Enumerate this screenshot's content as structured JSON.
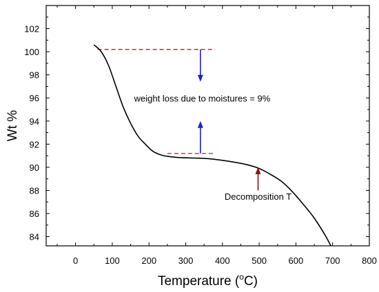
{
  "chart_data": {
    "type": "line",
    "title": "",
    "xlabel": "Temperature (",
    "xlabel_sup": "o",
    "xlabel_end": "C)",
    "ylabel": "Wt %",
    "xlim": [
      -80,
      800
    ],
    "ylim": [
      83.2,
      104
    ],
    "xticks": [
      0,
      100,
      200,
      300,
      400,
      500,
      600,
      700,
      800
    ],
    "yticks": [
      84,
      86,
      88,
      90,
      92,
      94,
      96,
      98,
      100,
      102
    ],
    "grid": false,
    "series": [
      {
        "color": "#000000",
        "x": [
          50,
          70,
          90,
          110,
          130,
          150,
          170,
          190,
          210,
          230,
          250,
          280,
          320,
          360,
          400,
          440,
          470,
          500,
          530,
          560,
          590,
          620,
          650,
          680,
          695
        ],
        "y": [
          100.6,
          100.0,
          98.8,
          97.0,
          95.2,
          93.8,
          92.7,
          92.0,
          91.4,
          91.1,
          90.95,
          90.85,
          90.8,
          90.75,
          90.6,
          90.4,
          90.2,
          89.9,
          89.4,
          88.8,
          87.9,
          86.8,
          85.6,
          84.1,
          83.2
        ]
      }
    ],
    "reference_lines": [
      {
        "x1": 60,
        "x2": 380,
        "y": 100.2,
        "color": "#d62728",
        "style": "dashed"
      },
      {
        "x1": 250,
        "x2": 380,
        "y": 91.2,
        "color": "#d62728",
        "style": "dashed"
      }
    ],
    "arrows": [
      {
        "x": 340,
        "y_from": 100.2,
        "y_to": 97.4,
        "color": "#1f1fd6"
      },
      {
        "x": 340,
        "y_from": 91.2,
        "y_to": 94.0,
        "color": "#1f1fd6"
      },
      {
        "x": 497,
        "y_from": 88.0,
        "y_to": 90.0,
        "color": "#8b1010"
      }
    ],
    "annotations": [
      {
        "text": "weight loss due to moistures = 9%",
        "x": 345,
        "y": 95.7
      },
      {
        "text": "Decomposition T",
        "x": 497,
        "y": 87.2
      }
    ]
  }
}
